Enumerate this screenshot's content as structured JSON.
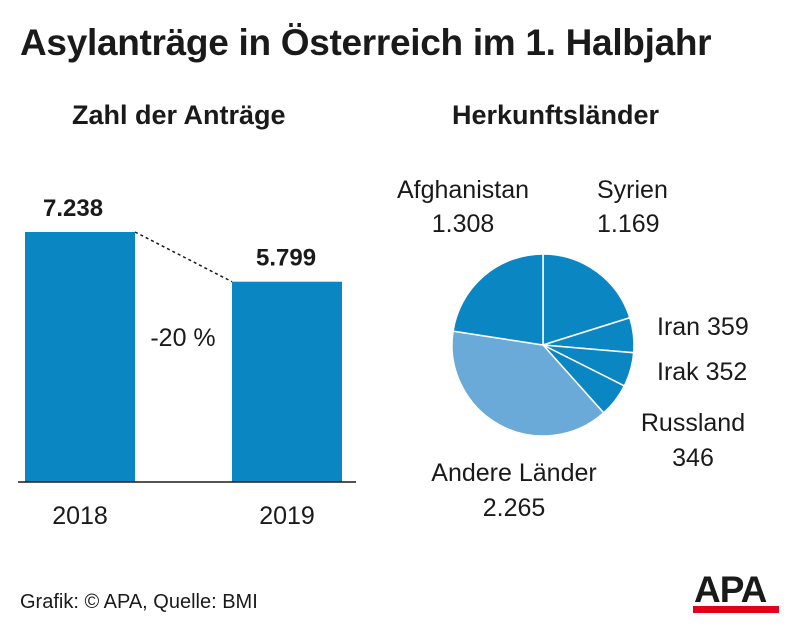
{
  "title": "Asylanträge in Österreich im 1. Halbjahr",
  "source": "Grafik: © APA, Quelle: BMI",
  "logo_text": "APA",
  "colors": {
    "bar": "#0a86c3",
    "slice_dark": "#0a86c3",
    "slice_light": "#6aaad8",
    "text": "#1a1a1a",
    "logo_red": "#e3001b"
  },
  "chart_data": [
    {
      "type": "bar",
      "title": "Zahl der Anträge",
      "categories": [
        "2018",
        "2019"
      ],
      "values": [
        7238,
        5799
      ],
      "value_labels": [
        "7.238",
        "5.799"
      ],
      "change_label": "-20 %",
      "ylim": [
        0,
        7238
      ]
    },
    {
      "type": "pie",
      "title": "Herkunftsländer",
      "slices": [
        {
          "name": "Syrien",
          "value": 1169,
          "value_label": "1.169",
          "color": "#0a86c3"
        },
        {
          "name": "Iran",
          "value": 359,
          "value_label": "359",
          "color": "#0a86c3"
        },
        {
          "name": "Irak",
          "value": 352,
          "value_label": "352",
          "color": "#0a86c3"
        },
        {
          "name": "Russland",
          "value": 346,
          "value_label": "346",
          "color": "#0a86c3"
        },
        {
          "name": "Andere Länder",
          "value": 2265,
          "value_label": "2.265",
          "color": "#6aaad8"
        },
        {
          "name": "Afghanistan",
          "value": 1308,
          "value_label": "1.308",
          "color": "#0a86c3"
        }
      ]
    }
  ]
}
